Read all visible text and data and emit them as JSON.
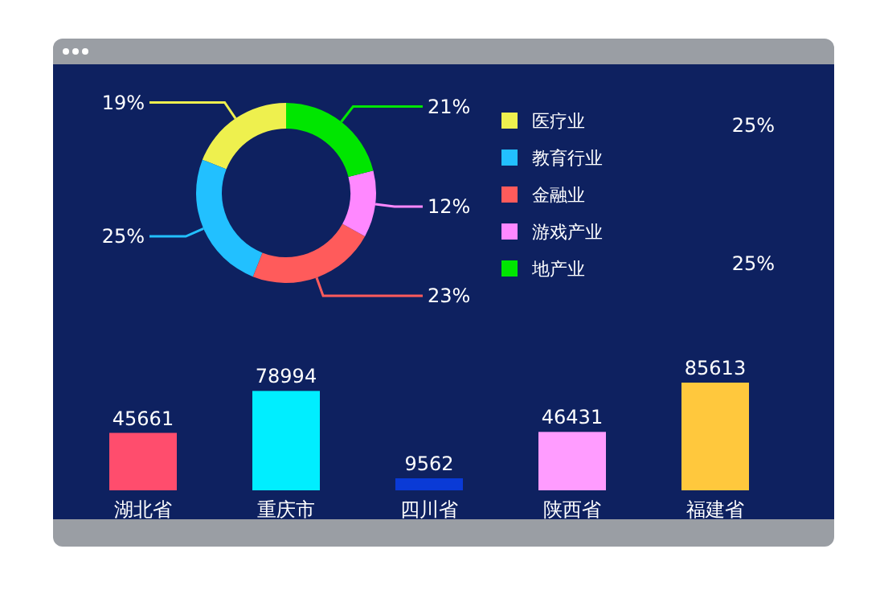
{
  "chart_data": [
    {
      "type": "donut",
      "categories": [
        "医疗业",
        "教育行业",
        "金融业",
        "游戏产业",
        "地产业"
      ],
      "values": [
        19,
        25,
        23,
        12,
        21
      ],
      "colors": [
        "#eef04e",
        "#22c0ff",
        "#ff5b5b",
        "#ff88ff",
        "#00e600"
      ],
      "value_labels": [
        "19%",
        "25%",
        "23%",
        "12%",
        "21%"
      ],
      "legend": "right"
    },
    {
      "type": "other",
      "annotations": [
        "25%",
        "25%"
      ]
    },
    {
      "type": "bar",
      "categories": [
        "湖北省",
        "重庆市",
        "四川省",
        "陕西省",
        "福建省"
      ],
      "values": [
        45661,
        78994,
        9562,
        46431,
        85613
      ],
      "colors": [
        "#ff4d6d",
        "#00eeff",
        "#0a3ad6",
        "#ff9cff",
        "#ffc83d"
      ],
      "data_labels": true
    }
  ]
}
